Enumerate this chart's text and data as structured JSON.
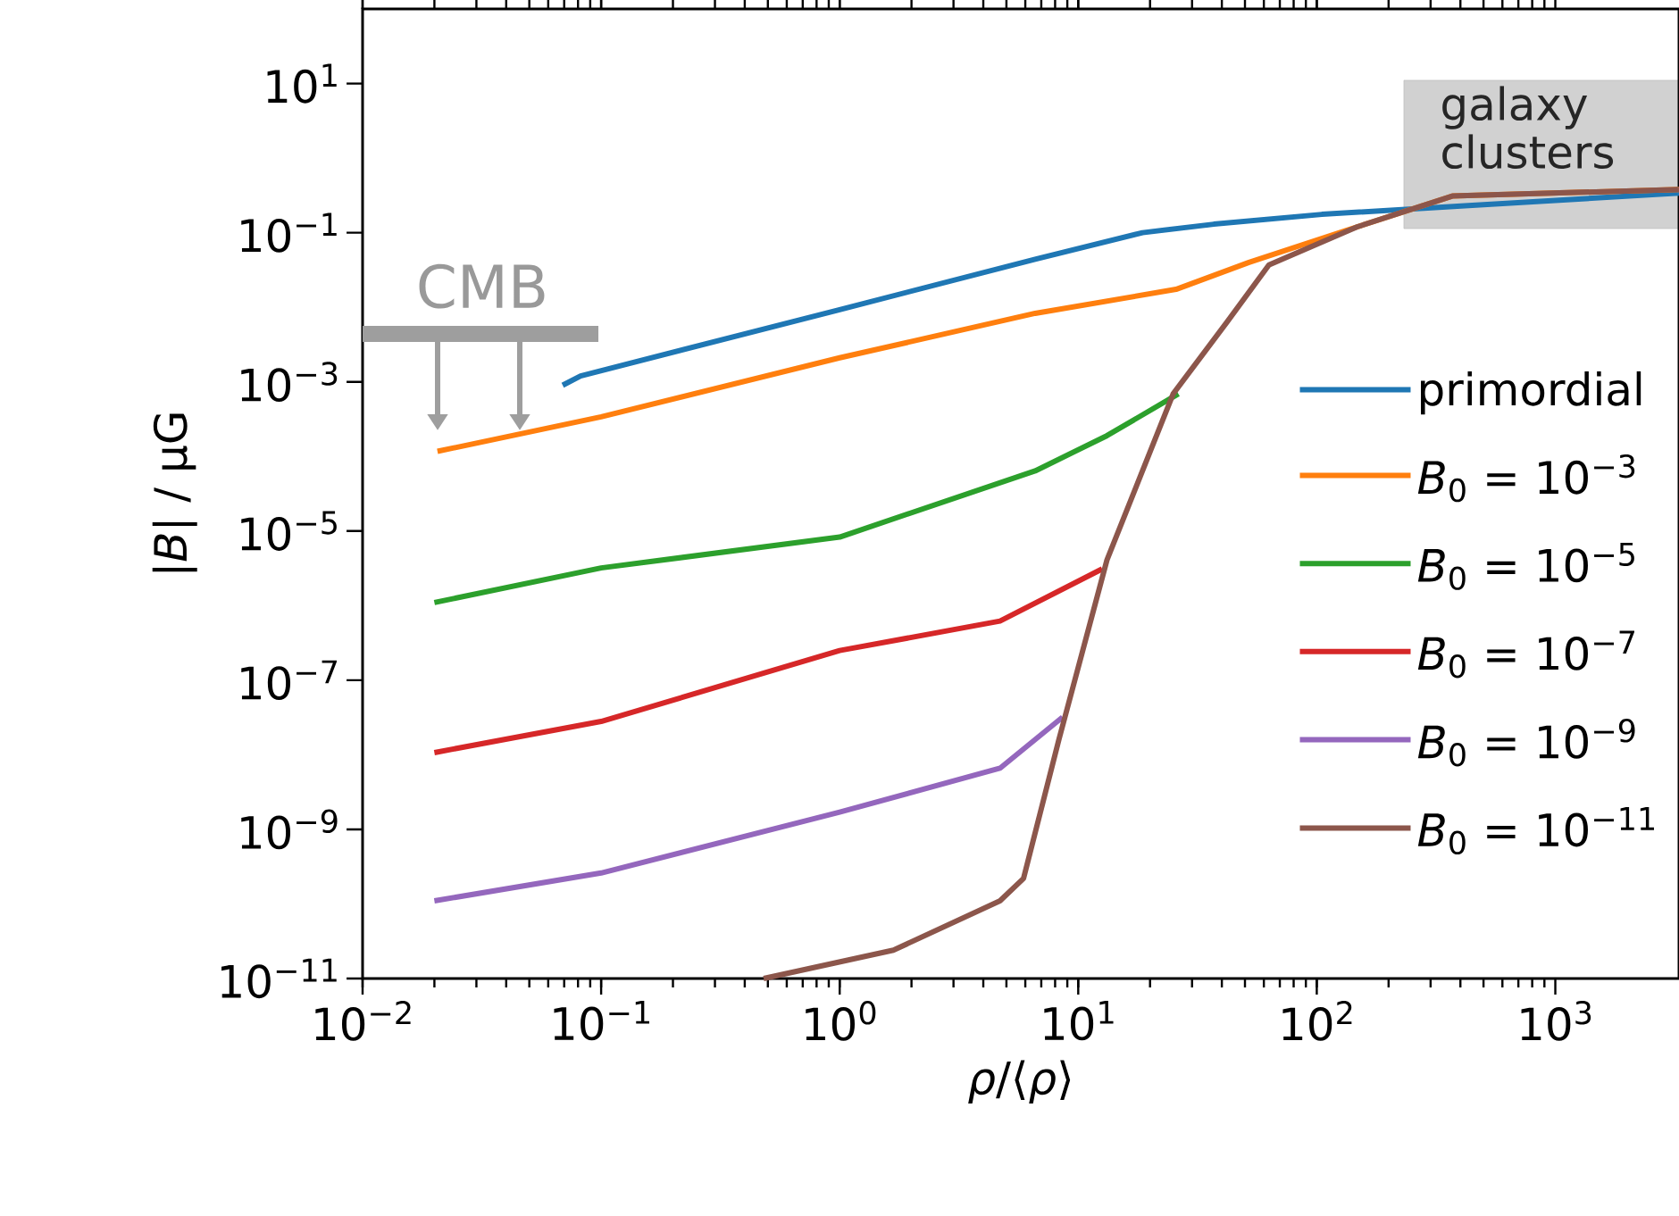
{
  "chart_data": {
    "type": "line",
    "xlabel": "*ρ*/⟨*ρ*⟩",
    "ylabel": "|*B*| / μG",
    "log": "xy",
    "xlim": [
      0.01,
      3300
    ],
    "ylim": [
      1e-11,
      100
    ],
    "xticks": [
      {
        "value": 0.01,
        "label": "10$^{−2}$"
      },
      {
        "value": 0.1,
        "label": "10$^{−1}$"
      },
      {
        "value": 1,
        "label": "10$^{0}$"
      },
      {
        "value": 10,
        "label": "10$^{1}$"
      },
      {
        "value": 100,
        "label": "10$^{2}$"
      },
      {
        "value": 1000,
        "label": "10$^{3}$"
      }
    ],
    "yticks": [
      {
        "value": 1e-11,
        "label": "10$^{−11}$"
      },
      {
        "value": 1e-09,
        "label": "10$^{−9}$"
      },
      {
        "value": 1e-07,
        "label": "10$^{−7}$"
      },
      {
        "value": 1e-05,
        "label": "10$^{−5}$"
      },
      {
        "value": 0.001,
        "label": "10$^{−3}$"
      },
      {
        "value": 0.1,
        "label": "10$^{−1}$"
      },
      {
        "value": 10,
        "label": "10$^{1}$"
      }
    ],
    "grid": false,
    "legend": "right",
    "marker": "none",
    "line_style": "solid",
    "series": [
      {
        "name": "primordial",
        "color": "#1f77b4",
        "x": [
          0.069,
          0.082,
          1,
          6.6,
          18.6,
          37,
          105,
          417,
          3300
        ],
        "values": [
          0.0009,
          0.0012,
          0.0093,
          0.044,
          0.1,
          0.13,
          0.176,
          0.23,
          0.34
        ]
      },
      {
        "name": "*B*$_{0}$ = 10$^{−3}$",
        "color": "#ff7f0e",
        "x": [
          0.0206,
          0.1,
          1,
          6.6,
          25.7,
          52,
          148,
          370,
          3300
        ],
        "values": [
          0.000117,
          0.00034,
          0.0021,
          0.0083,
          0.0174,
          0.04,
          0.12,
          0.31,
          0.38
        ]
      },
      {
        "name": "*B*$_{0}$ = 10$^{−5}$",
        "color": "#2ca02c",
        "x": [
          0.02,
          0.1,
          1,
          6.6,
          13.2,
          26.3
        ],
        "values": [
          1.1e-06,
          3.2e-06,
          8.3e-06,
          6.4e-05,
          0.00019,
          0.00069
        ]
      },
      {
        "name": "*B*$_{0}$ = 10$^{−7}$",
        "color": "#d62728",
        "x": [
          0.02,
          0.1,
          1,
          4.7,
          12.6
        ],
        "values": [
          1.07e-08,
          2.8e-08,
          2.5e-07,
          6.2e-07,
          3.1e-06
        ]
      },
      {
        "name": "*B*$_{0}$ = 10$^{−9}$",
        "color": "#9467bd",
        "x": [
          0.02,
          0.1,
          1,
          4.7,
          8.6
        ],
        "values": [
          1.1e-10,
          2.6e-10,
          1.7e-09,
          6.6e-09,
          3.2e-08
        ]
      },
      {
        "name": "*B*$_{0}$ = 10$^{−11}$",
        "color": "#8c564b",
        "x": [
          0.48,
          1.68,
          4.7,
          5.9,
          8.3,
          13.2,
          25,
          42,
          63,
          148,
          370,
          3300
        ],
        "values": [
          1e-11,
          2.4e-11,
          1.1e-10,
          2.2e-10,
          1.6e-08,
          4.1e-06,
          0.00069,
          0.0063,
          0.037,
          0.12,
          0.31,
          0.38
        ]
      }
    ],
    "annotations": [
      "CMB",
      "galaxy clusters"
    ]
  }
}
